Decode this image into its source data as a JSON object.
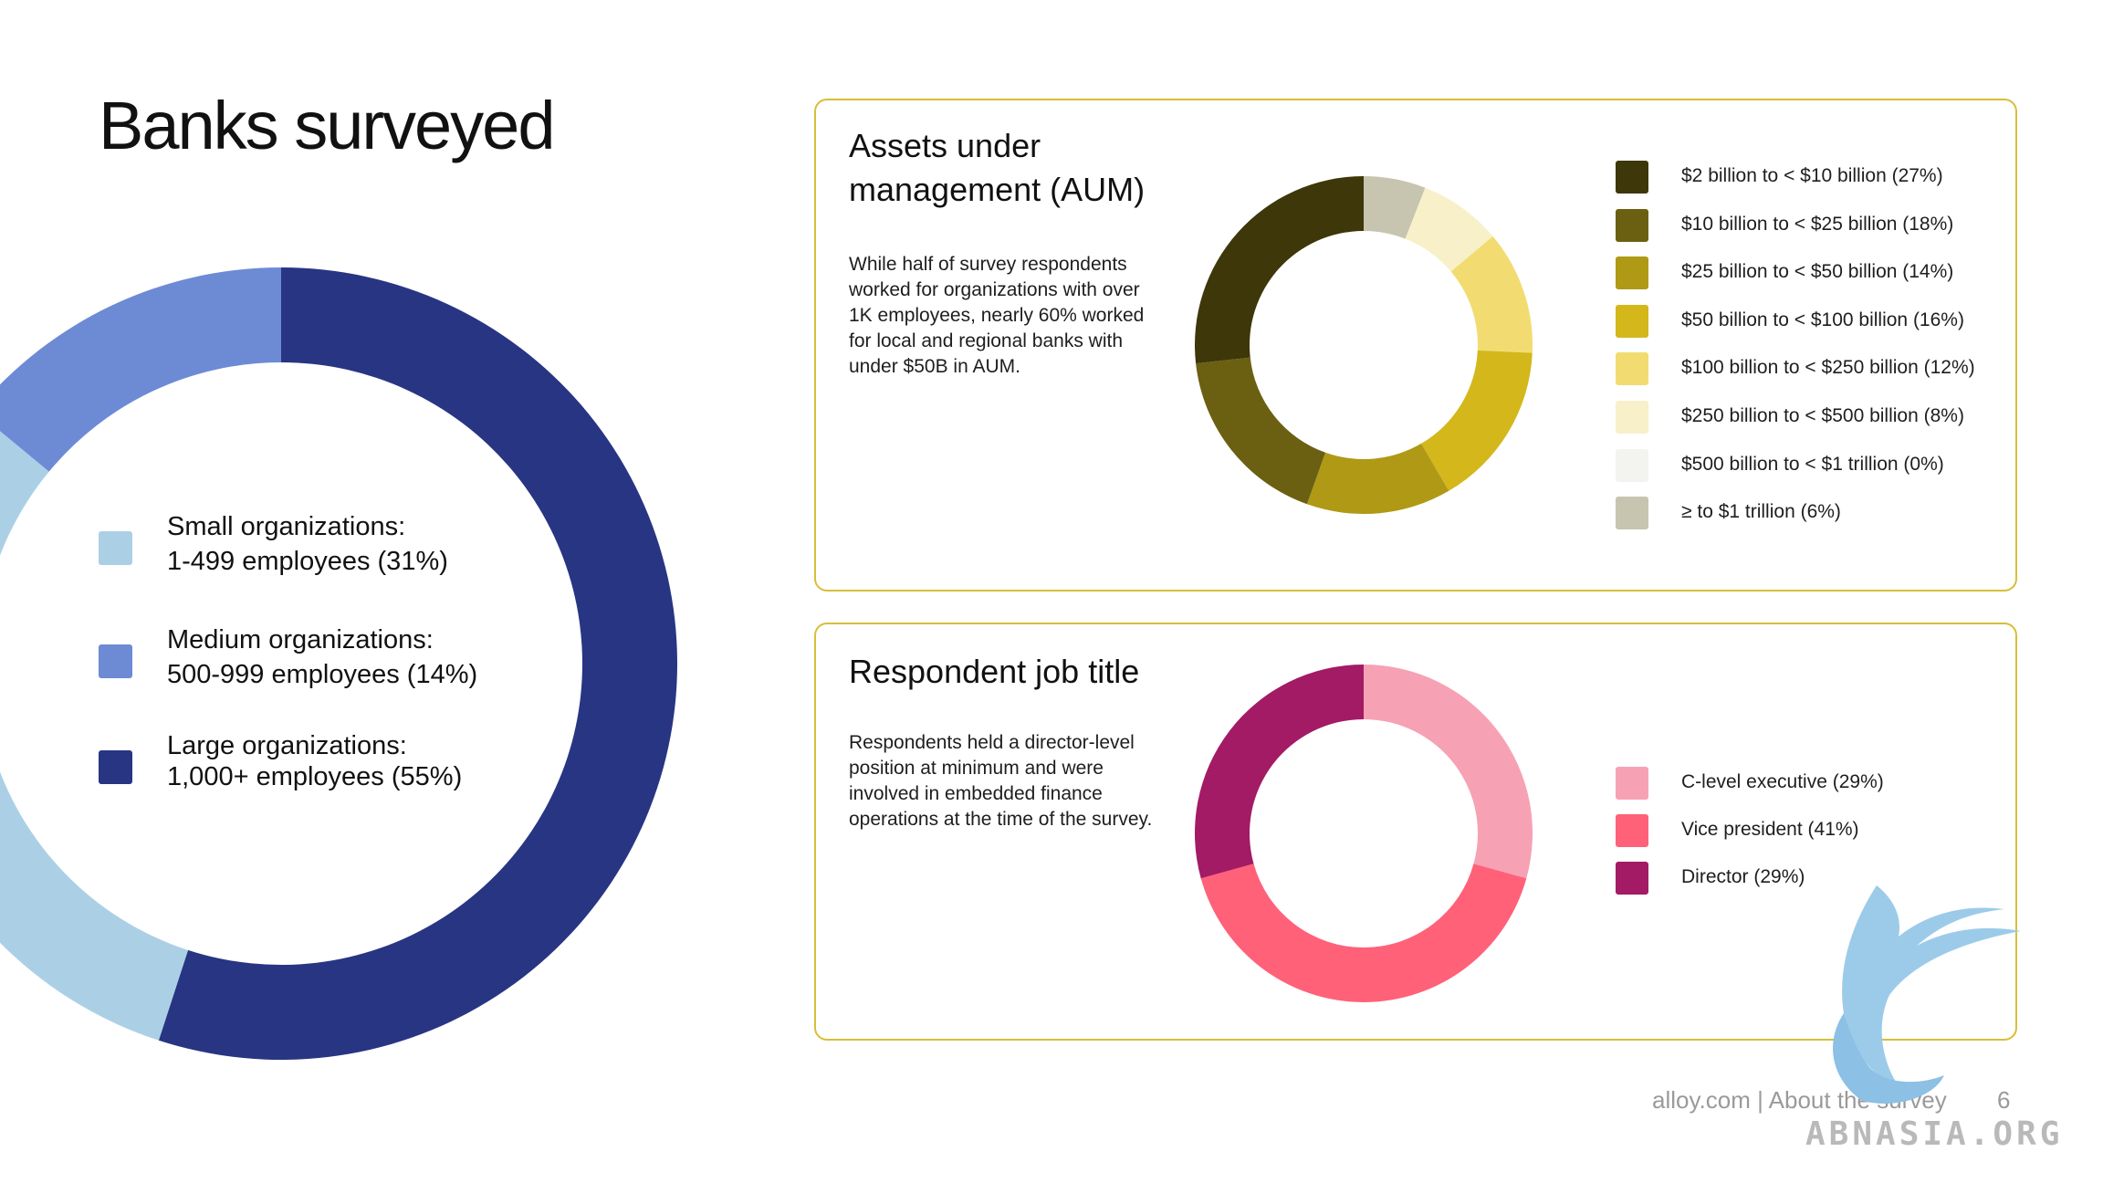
{
  "page": {
    "title": "Banks surveyed"
  },
  "footer": {
    "text": "alloy.com | About the survey",
    "page_number": "6"
  },
  "watermark": {
    "text": "ABNASIA.ORG",
    "icon": "griffin-logo-icon"
  },
  "chart_data": [
    {
      "type": "pie",
      "subtype": "donut",
      "title": "",
      "categories": [
        "Large organizations",
        "Small organizations",
        "Medium organizations"
      ],
      "values": [
        55,
        31,
        14
      ],
      "colors": [
        "#283583",
        "#abd0e6",
        "#6d8ad5"
      ],
      "legend": [
        {
          "name": "Small organizations:",
          "detail": "1-499 employees (31%)",
          "color": "#abd0e6"
        },
        {
          "name": "Medium organizations:",
          "detail": "500-999 employees (14%)",
          "color": "#6d8ad5"
        },
        {
          "name": "Large organizations:",
          "detail": "1,000+ employees (55%)",
          "color": "#283583"
        }
      ]
    },
    {
      "type": "pie",
      "subtype": "donut",
      "title": "Assets under management (AUM)",
      "description": "While half of survey respondents worked for organizations with over 1K employees, nearly 60% worked for local and regional banks with under $50B in AUM.",
      "categories": [
        "≥ to $1 trillion",
        "$250 billion to < $500 billion",
        "$100 billion to < $250 billion",
        "$50 billion to < $100 billion",
        "$25 billion to < $50 billion",
        "$10 billion to < $25 billion",
        "$2 billion to < $10 billion"
      ],
      "values": [
        6,
        8,
        12,
        16,
        14,
        18,
        27
      ],
      "colors": [
        "#c7c5b0",
        "#f8f0c8",
        "#f2dc72",
        "#d4b71b",
        "#b09915",
        "#6b6011",
        "#3d3709"
      ],
      "legend": [
        {
          "label": "$2 billion to < $10 billion (27%)",
          "color": "#3d3709"
        },
        {
          "label": "$10 billion to < $25 billion (18%)",
          "color": "#6b6011"
        },
        {
          "label": "$25 billion to < $50 billion (14%)",
          "color": "#b09915"
        },
        {
          "label": "$50 billion to < $100 billion (16%)",
          "color": "#d4b71b"
        },
        {
          "label": "$100 billion to < $250 billion (12%)",
          "color": "#f2dc72"
        },
        {
          "label": "$250 billion to < $500 billion (8%)",
          "color": "#f8f0c8"
        },
        {
          "label": "$500 billion to < $1 trillion (0%)",
          "color": "#f3f3ef"
        },
        {
          "label": "≥ to $1 trillion (6%)",
          "color": "#c7c5b0"
        }
      ]
    },
    {
      "type": "pie",
      "subtype": "donut",
      "title": "Respondent job title",
      "description": "Respondents held a director-level position at minimum and were involved in embedded finance operations at the time of the survey.",
      "categories": [
        "C-level executive",
        "Vice president",
        "Director"
      ],
      "values": [
        29,
        41,
        29
      ],
      "colors": [
        "#f7a1b5",
        "#ff6179",
        "#a31a65"
      ],
      "legend": [
        {
          "label": "C-level executive (29%)",
          "color": "#f7a1b5"
        },
        {
          "label": "Vice president (41%)",
          "color": "#ff6179"
        },
        {
          "label": "Director (29%)",
          "color": "#a31a65"
        }
      ]
    }
  ]
}
